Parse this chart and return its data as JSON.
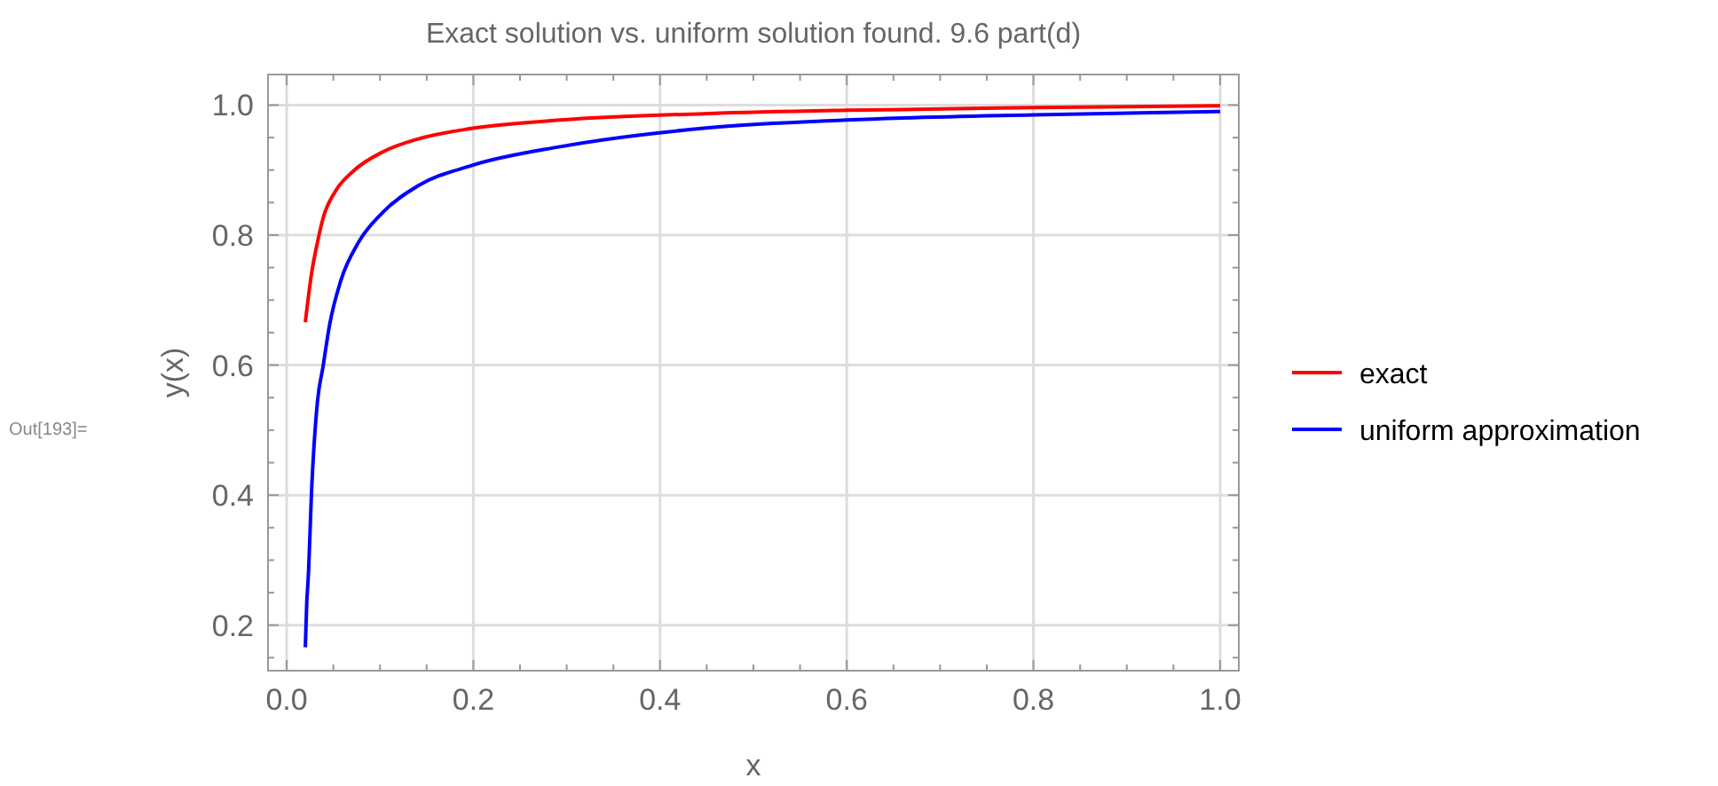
{
  "chart_data": {
    "type": "line",
    "title": "Exact solution vs. uniform solution found. 9.6 part(d)",
    "xlabel": "x",
    "ylabel": "y(x)",
    "annotations": [
      "Out[193]="
    ],
    "xlim": [
      -0.02,
      1.02
    ],
    "ylim": [
      0.13,
      1.047
    ],
    "xticks": [
      {
        "value": 0,
        "label": "0.0"
      },
      {
        "value": 0.05,
        "label": null
      },
      {
        "value": 0.1,
        "label": null
      },
      {
        "value": 0.15,
        "label": null
      },
      {
        "value": 0.2,
        "label": "0.2"
      },
      {
        "value": 0.25,
        "label": null
      },
      {
        "value": 0.3,
        "label": null
      },
      {
        "value": 0.35,
        "label": null
      },
      {
        "value": 0.4,
        "label": "0.4"
      },
      {
        "value": 0.45,
        "label": null
      },
      {
        "value": 0.5,
        "label": null
      },
      {
        "value": 0.55,
        "label": null
      },
      {
        "value": 0.6,
        "label": "0.6"
      },
      {
        "value": 0.65,
        "label": null
      },
      {
        "value": 0.7,
        "label": null
      },
      {
        "value": 0.75,
        "label": null
      },
      {
        "value": 0.8,
        "label": "0.8"
      },
      {
        "value": 0.85,
        "label": null
      },
      {
        "value": 0.9,
        "label": null
      },
      {
        "value": 0.95,
        "label": null
      },
      {
        "value": 1,
        "label": "1.0"
      }
    ],
    "yticks": [
      {
        "value": 0.15,
        "label": null
      },
      {
        "value": 0.2,
        "label": "0.2"
      },
      {
        "value": 0.25,
        "label": null
      },
      {
        "value": 0.3,
        "label": null
      },
      {
        "value": 0.35,
        "label": null
      },
      {
        "value": 0.4,
        "label": "0.4"
      },
      {
        "value": 0.45,
        "label": null
      },
      {
        "value": 0.5,
        "label": null
      },
      {
        "value": 0.55,
        "label": null
      },
      {
        "value": 0.6,
        "label": "0.6"
      },
      {
        "value": 0.65,
        "label": null
      },
      {
        "value": 0.7,
        "label": null
      },
      {
        "value": 0.75,
        "label": null
      },
      {
        "value": 0.8,
        "label": "0.8"
      },
      {
        "value": 0.85,
        "label": null
      },
      {
        "value": 0.9,
        "label": null
      },
      {
        "value": 0.95,
        "label": null
      },
      {
        "value": 1,
        "label": "1.0"
      }
    ],
    "grid": true,
    "legend": "right",
    "marker": "none",
    "line_style": "solid",
    "series": [
      {
        "name": "exact",
        "color": "#ff0000",
        "x": [
          0.02,
          0.027,
          0.033,
          0.039,
          0.052,
          0.071,
          0.103,
          0.141,
          0.198,
          0.293,
          0.452,
          0.6,
          0.8,
          1.0
        ],
        "values": [
          0.666,
          0.744,
          0.789,
          0.826,
          0.867,
          0.898,
          0.928,
          0.948,
          0.964,
          0.977,
          0.987,
          0.992,
          0.996,
          0.999
        ]
      },
      {
        "name": "uniform approximation",
        "color": "#0000ff",
        "x": [
          0.02,
          0.0215,
          0.023,
          0.027,
          0.033,
          0.039,
          0.046,
          0.058,
          0.077,
          0.103,
          0.141,
          0.198,
          0.293,
          0.452,
          0.6,
          0.8,
          1.0
        ],
        "values": [
          0.166,
          0.234,
          0.27,
          0.416,
          0.544,
          0.598,
          0.662,
          0.73,
          0.789,
          0.835,
          0.876,
          0.907,
          0.936,
          0.965,
          0.977,
          0.985,
          0.99
        ]
      }
    ]
  }
}
